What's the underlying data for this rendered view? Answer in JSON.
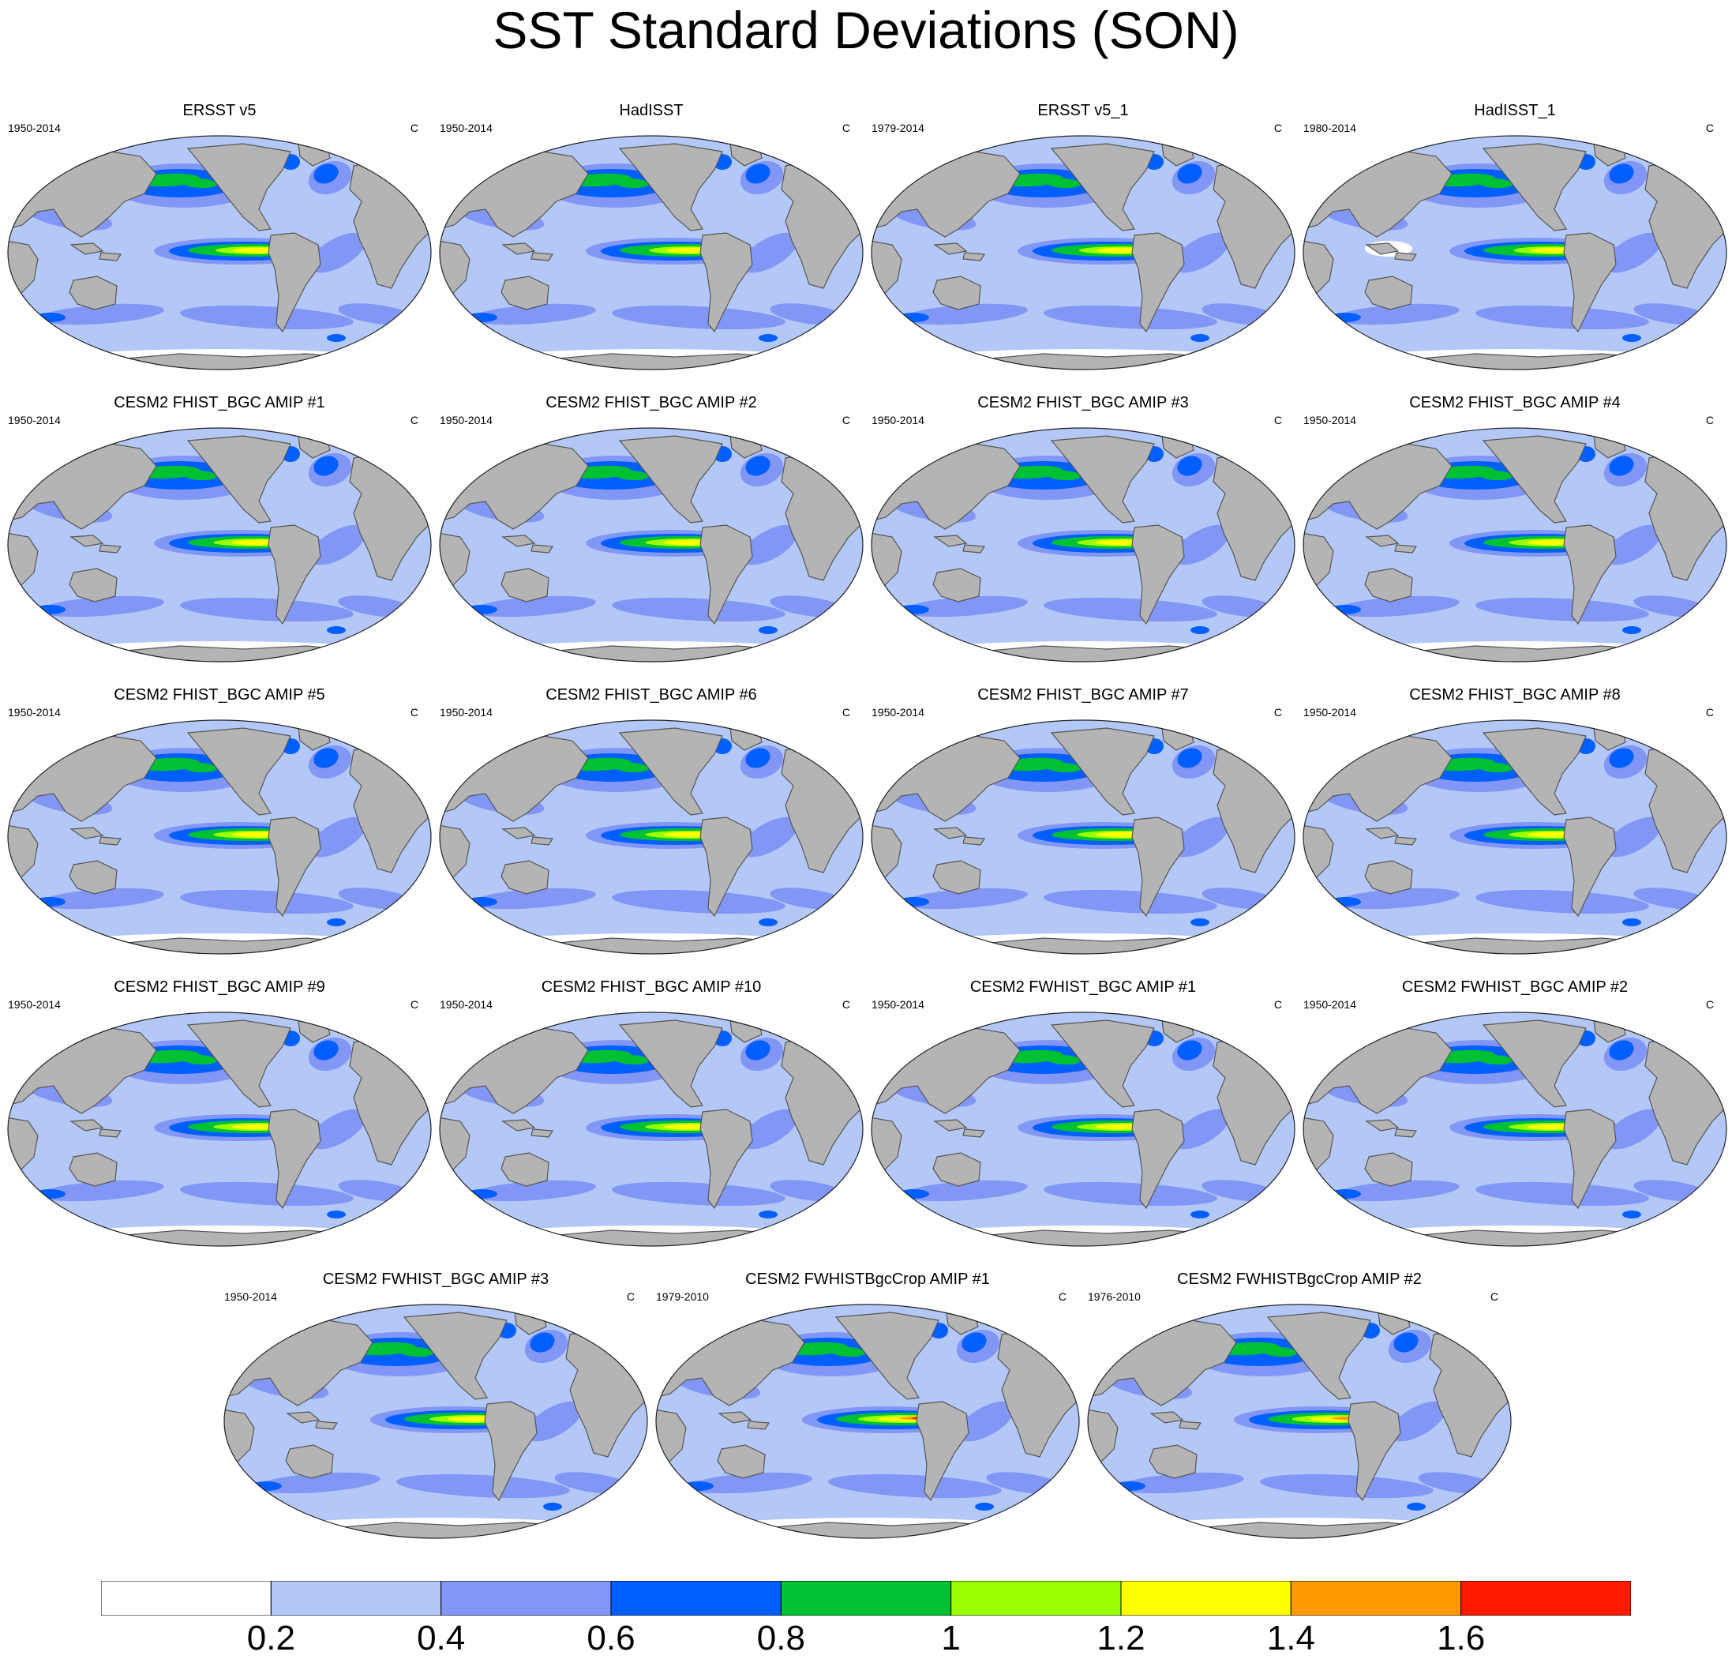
{
  "title": "SST Standard Deviations (SON)",
  "unit": "C",
  "colors": {
    "land": "#b4b4b4",
    "coast": "#555555",
    "levels": [
      "#ffffff",
      "#b4c8f8",
      "#8296f6",
      "#005ffe",
      "#00c131",
      "#99ff00",
      "#ffff00",
      "#ff9a00",
      "#ff1900"
    ],
    "outline": "#222222"
  },
  "panels": [
    {
      "title": "ERSST v5",
      "range": "1950-2014",
      "intensity": 0.86
    },
    {
      "title": "HadISST",
      "range": "1950-2014",
      "intensity": 0.82
    },
    {
      "title": "ERSST v5_1",
      "range": "1979-2014",
      "intensity": 0.86
    },
    {
      "title": "HadISST_1",
      "range": "1980-2014",
      "intensity": 0.8
    },
    {
      "title": "CESM2 FHIST_BGC AMIP #1",
      "range": "1950-2014",
      "intensity": 0.9
    },
    {
      "title": "CESM2 FHIST_BGC AMIP #2",
      "range": "1950-2014",
      "intensity": 0.9
    },
    {
      "title": "CESM2 FHIST_BGC AMIP #3",
      "range": "1950-2014",
      "intensity": 0.9
    },
    {
      "title": "CESM2 FHIST_BGC AMIP #4",
      "range": "1950-2014",
      "intensity": 0.9
    },
    {
      "title": "CESM2 FHIST_BGC AMIP #5",
      "range": "1950-2014",
      "intensity": 0.9
    },
    {
      "title": "CESM2 FHIST_BGC AMIP #6",
      "range": "1950-2014",
      "intensity": 0.9
    },
    {
      "title": "CESM2 FHIST_BGC AMIP #7",
      "range": "1950-2014",
      "intensity": 0.9
    },
    {
      "title": "CESM2 FHIST_BGC AMIP #8",
      "range": "1950-2014",
      "intensity": 0.9
    },
    {
      "title": "CESM2 FHIST_BGC AMIP #9",
      "range": "1950-2014",
      "intensity": 0.9
    },
    {
      "title": "CESM2 FHIST_BGC AMIP #10",
      "range": "1950-2014",
      "intensity": 0.9
    },
    {
      "title": "CESM2 FWHIST_BGC AMIP #1",
      "range": "1950-2014",
      "intensity": 0.9
    },
    {
      "title": "CESM2 FWHIST_BGC AMIP #2",
      "range": "1950-2014",
      "intensity": 0.9
    },
    {
      "title": "CESM2 FWHIST_BGC AMIP #3",
      "range": "1950-2014",
      "intensity": 0.9
    },
    {
      "title": "CESM2 FWHISTBgcCrop AMIP #1",
      "range": "1979-2010",
      "intensity": 0.97
    },
    {
      "title": "CESM2 FWHISTBgcCrop AMIP #2",
      "range": "1976-2010",
      "intensity": 0.93
    }
  ],
  "colorbar": {
    "labels": [
      "0.2",
      "0.4",
      "0.6",
      "0.8",
      "1",
      "1.2",
      "1.4",
      "1.6"
    ]
  }
}
